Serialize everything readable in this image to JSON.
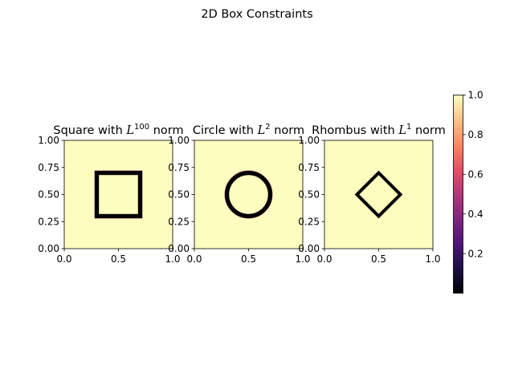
{
  "figure": {
    "suptitle": "2D Box Constraints"
  },
  "colors": {
    "background_field": "#fcfdbf",
    "shape_outline": "#000004",
    "shape_edge": "#b73779",
    "axes_edge": "#000000"
  },
  "chart_data": [
    {
      "type": "heatmap",
      "title_prefix": "Square with ",
      "title_math_base": "L",
      "title_math_sup": "100",
      "title_suffix": " norm",
      "shape": "square",
      "norm_p": 100,
      "center": [
        0.5,
        0.5
      ],
      "radius": 0.2,
      "band_width": 0.04,
      "xlim": [
        0.0,
        1.0
      ],
      "ylim": [
        0.0,
        1.0
      ],
      "xticks": [
        "0.0",
        "0.5",
        "1.0"
      ],
      "yticks": [
        "0.00",
        "0.25",
        "0.50",
        "0.75",
        "1.00"
      ]
    },
    {
      "type": "heatmap",
      "title_prefix": "Circle with ",
      "title_math_base": "L",
      "title_math_sup": "2",
      "title_suffix": " norm",
      "shape": "circle",
      "norm_p": 2,
      "center": [
        0.5,
        0.5
      ],
      "radius": 0.2,
      "band_width": 0.04,
      "xlim": [
        0.0,
        1.0
      ],
      "ylim": [
        0.0,
        1.0
      ],
      "xticks": [
        "0.0",
        "0.5",
        "1.0"
      ],
      "yticks": [
        "0.00",
        "0.25",
        "0.50",
        "0.75",
        "1.00"
      ]
    },
    {
      "type": "heatmap",
      "title_prefix": "Rhombus with ",
      "title_math_base": "L",
      "title_math_sup": "1",
      "title_suffix": " norm",
      "shape": "rhombus",
      "norm_p": 1,
      "center": [
        0.5,
        0.5
      ],
      "radius": 0.2,
      "band_width": 0.03,
      "xlim": [
        0.0,
        1.0
      ],
      "ylim": [
        0.0,
        1.0
      ],
      "xticks": [
        "0.0",
        "0.5",
        "1.0"
      ],
      "yticks": [
        "0.00",
        "0.25",
        "0.50",
        "0.75",
        "1.00"
      ]
    }
  ],
  "colorbar": {
    "colormap": "magma",
    "ticks": [
      "0.2",
      "0.4",
      "0.6",
      "0.8",
      "1.0"
    ],
    "range": [
      0.0,
      1.0
    ]
  }
}
